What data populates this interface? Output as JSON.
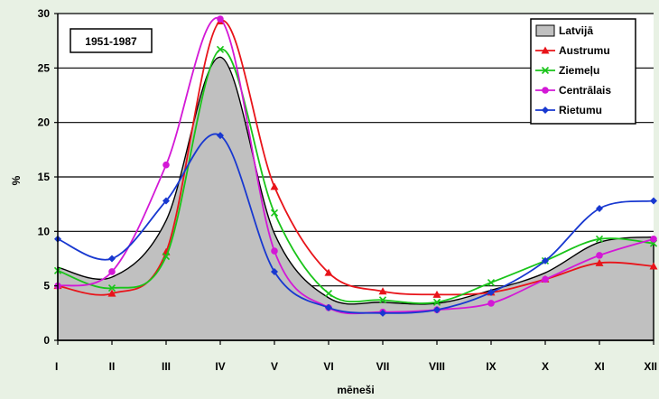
{
  "chart_data": {
    "type": "line",
    "period_label": "1951-1987",
    "xlabel": "mēneši",
    "ylabel": "%",
    "ylim": [
      0,
      30
    ],
    "yticks": [
      0,
      5,
      10,
      15,
      20,
      25,
      30
    ],
    "grid": true,
    "legend_position": "top-right",
    "categories": [
      "I",
      "II",
      "III",
      "IV",
      "V",
      "VI",
      "VII",
      "VIII",
      "IX",
      "X",
      "XI",
      "XII"
    ],
    "series": [
      {
        "name": "Latvijā",
        "style": "area",
        "color": "#c0c0c0",
        "marker": "none",
        "values": [
          6.7,
          5.8,
          11.0,
          26.0,
          9.8,
          3.9,
          3.5,
          3.4,
          4.6,
          6.2,
          9.0,
          9.5
        ]
      },
      {
        "name": "Austrumu",
        "style": "line",
        "color": "#e8141a",
        "marker": "triangle",
        "values": [
          5.0,
          4.3,
          8.1,
          29.3,
          14.1,
          6.2,
          4.5,
          4.2,
          4.4,
          5.6,
          7.1,
          6.8
        ]
      },
      {
        "name": "Ziemeļu",
        "style": "line",
        "color": "#19c419",
        "marker": "x",
        "values": [
          6.4,
          4.8,
          7.7,
          26.7,
          11.7,
          4.3,
          3.7,
          3.5,
          5.3,
          7.3,
          9.3,
          8.9
        ]
      },
      {
        "name": "Centrālais",
        "style": "line",
        "color": "#d318d6",
        "marker": "circle",
        "values": [
          5.0,
          6.3,
          16.1,
          29.5,
          8.2,
          3.0,
          2.6,
          2.8,
          3.4,
          5.6,
          7.8,
          9.3
        ]
      },
      {
        "name": "Rietumu",
        "style": "line",
        "color": "#1838d0",
        "marker": "diamond",
        "values": [
          9.3,
          7.5,
          12.8,
          18.8,
          6.3,
          3.0,
          2.5,
          2.8,
          4.4,
          7.3,
          12.1,
          12.8
        ]
      }
    ]
  }
}
